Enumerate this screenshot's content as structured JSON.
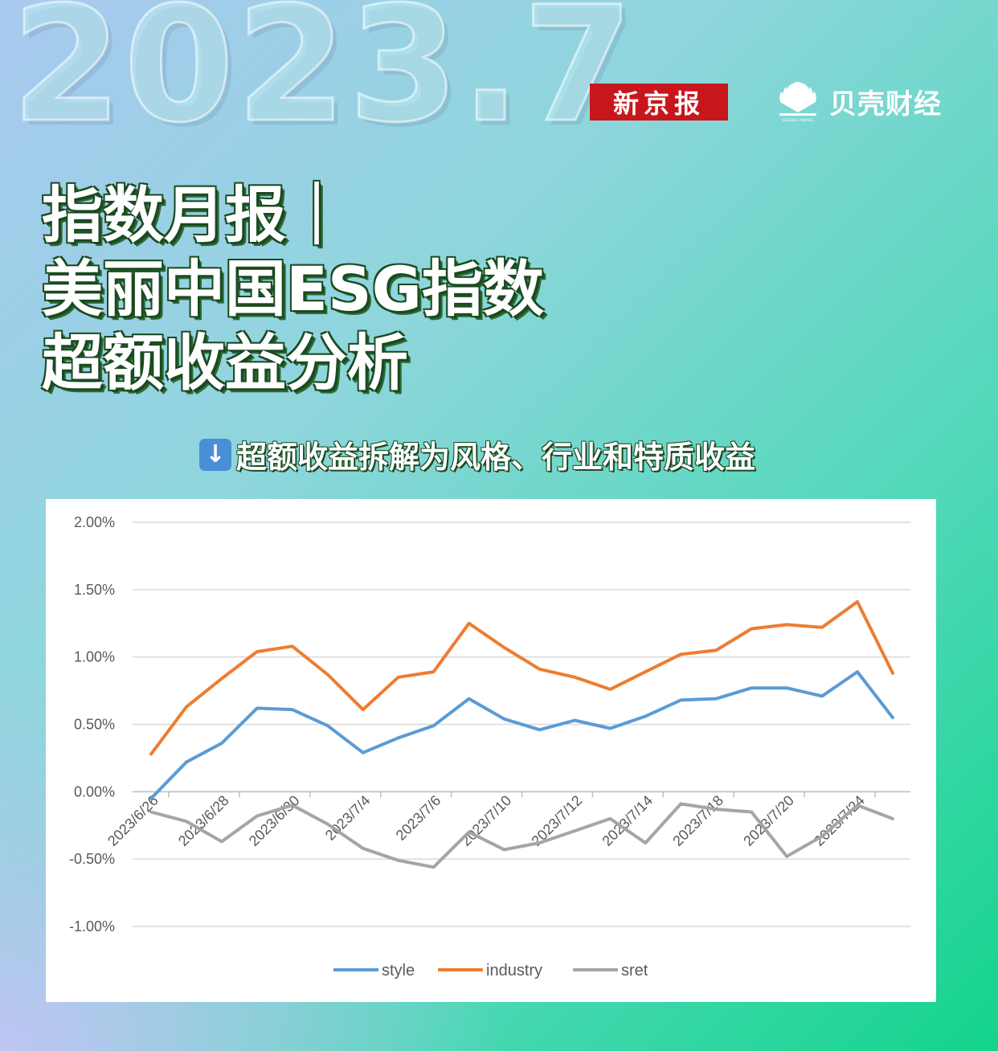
{
  "header": {
    "year": "2023.7",
    "brand_1": "新京报",
    "brand_2": "贝壳财经",
    "brand_2_sub": "SEASHELL FINANCE"
  },
  "title": {
    "line1": "指数月报｜",
    "line2": "美丽中国ESG指数",
    "line3": "超额收益分析"
  },
  "subtitle": {
    "icon": "down-arrow-icon",
    "text": "超额收益拆解为风格、行业和特质收益"
  },
  "colors": {
    "style": "#5b9bd5",
    "industry": "#ed7d31",
    "sret": "#a5a5a5",
    "brand_red": "#c8161d"
  },
  "chart_data": {
    "type": "line",
    "x": [
      "2023/6/26",
      "2023/6/27",
      "2023/6/28",
      "2023/6/29",
      "2023/6/30",
      "2023/7/3",
      "2023/7/4",
      "2023/7/5",
      "2023/7/6",
      "2023/7/7",
      "2023/7/10",
      "2023/7/11",
      "2023/7/12",
      "2023/7/13",
      "2023/7/14",
      "2023/7/17",
      "2023/7/18",
      "2023/7/19",
      "2023/7/20",
      "2023/7/21",
      "2023/7/24",
      "2023/7/25"
    ],
    "tick_labels": [
      "2023/6/26",
      "2023/6/28",
      "2023/6/30",
      "2023/7/4",
      "2023/7/6",
      "2023/7/10",
      "2023/7/12",
      "2023/7/14",
      "2023/7/18",
      "2023/7/20",
      "2023/7/24"
    ],
    "yticks": [
      "2.00%",
      "1.50%",
      "1.00%",
      "0.50%",
      "0.00%",
      "-0.50%",
      "-1.00%"
    ],
    "ylim": [
      -1.0,
      2.0
    ],
    "series": [
      {
        "name": "style",
        "values": [
          -0.05,
          0.22,
          0.36,
          0.62,
          0.61,
          0.49,
          0.29,
          0.4,
          0.49,
          0.69,
          0.54,
          0.46,
          0.53,
          0.47,
          0.56,
          0.68,
          0.69,
          0.77,
          0.77,
          0.71,
          0.89,
          0.55
        ]
      },
      {
        "name": "industry",
        "values": [
          0.28,
          0.63,
          0.84,
          1.04,
          1.08,
          0.87,
          0.61,
          0.85,
          0.89,
          1.25,
          1.07,
          0.91,
          0.85,
          0.76,
          0.89,
          1.02,
          1.05,
          1.21,
          1.24,
          1.22,
          1.41,
          0.88
        ]
      },
      {
        "name": "sret",
        "values": [
          -0.15,
          -0.22,
          -0.37,
          -0.18,
          -0.1,
          -0.24,
          -0.42,
          -0.51,
          -0.56,
          -0.3,
          -0.43,
          -0.38,
          -0.29,
          -0.2,
          -0.38,
          -0.09,
          -0.13,
          -0.15,
          -0.48,
          -0.33,
          -0.1,
          -0.2
        ]
      }
    ],
    "grid": true,
    "legend_position": "bottom"
  }
}
